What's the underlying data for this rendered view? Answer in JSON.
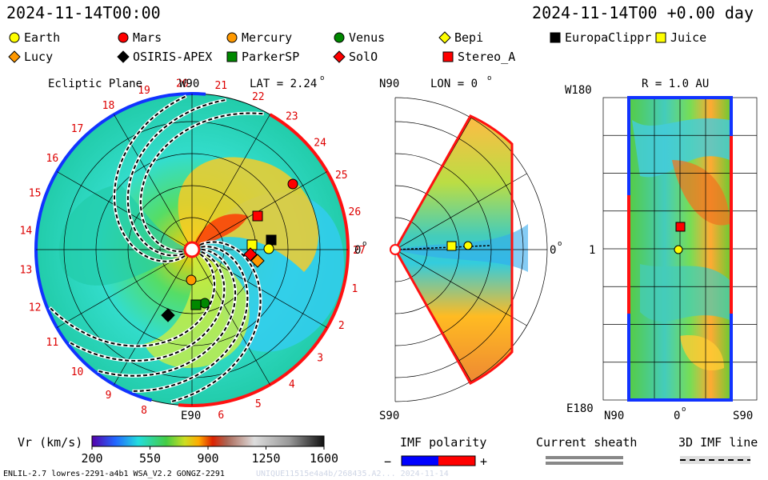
{
  "header": {
    "left": "2024-11-14T00:00",
    "right": "2024-11-14T00 +0.00 day"
  },
  "legend": [
    {
      "label": "Earth",
      "shape": "circle",
      "color": "#ffff00"
    },
    {
      "label": "Mars",
      "shape": "circle",
      "color": "#ff0000"
    },
    {
      "label": "Mercury",
      "shape": "circle",
      "color": "#ff9900"
    },
    {
      "label": "Venus",
      "shape": "circle",
      "color": "#008800"
    },
    {
      "label": "Bepi",
      "shape": "diamond",
      "color": "#ffff00"
    },
    {
      "label": "EuropaClippr",
      "shape": "square",
      "color": "#000000"
    },
    {
      "label": "Juice",
      "shape": "square",
      "color": "#ffff00"
    },
    {
      "label": "Lucy",
      "shape": "diamond",
      "color": "#ff9900"
    },
    {
      "label": "OSIRIS-APEX",
      "shape": "diamond",
      "color": "#000000"
    },
    {
      "label": "ParkerSP",
      "shape": "square",
      "color": "#008800"
    },
    {
      "label": "SolO",
      "shape": "diamond",
      "color": "#ff0000"
    },
    {
      "label": "Stereo_A",
      "shape": "square",
      "color": "#ff0000"
    }
  ],
  "chart_data": [
    {
      "type": "polar-map",
      "title": "Ecliptic Plane",
      "lat_label": "LAT = 2.24",
      "top_label": "W90",
      "bottom_label": "E90",
      "right_label": "0",
      "carrington_ticks": [
        "1",
        "2",
        "3",
        "4",
        "5",
        "6",
        "8",
        "9",
        "10",
        "11",
        "12",
        "13",
        "14",
        "15",
        "16",
        "17",
        "18",
        "19",
        "20",
        "21",
        "22",
        "23",
        "24",
        "25",
        "26",
        "27"
      ]
    },
    {
      "type": "meridional-map",
      "lon_label": "LON = 0",
      "top_label": "N90",
      "bottom_label": "S90",
      "right_label": "0"
    },
    {
      "type": "lat-lon-map",
      "r_label": "R = 1.0 AU",
      "y_top": "W180",
      "y_mid": "1",
      "y_bottom": "E180",
      "x_left": "N90",
      "x_mid": "0",
      "x_right": "S90"
    }
  ],
  "colorbar": {
    "label": "Vr (km/s)",
    "ticks": [
      "200",
      "550",
      "900",
      "1250",
      "1600"
    ],
    "range": [
      200,
      1600
    ]
  },
  "imf": {
    "label": "IMF polarity",
    "minus": "−",
    "plus": "+"
  },
  "sheath": {
    "label": "Current sheath"
  },
  "imf3d": {
    "label": "3D IMF line"
  },
  "footer": "ENLIL-2.7 lowres-2291-a4b1 WSA_V2.2 GONGZ-2291",
  "footer_id": "UNIQUE11515e4a4b/268435.A2... 2024-11-14"
}
